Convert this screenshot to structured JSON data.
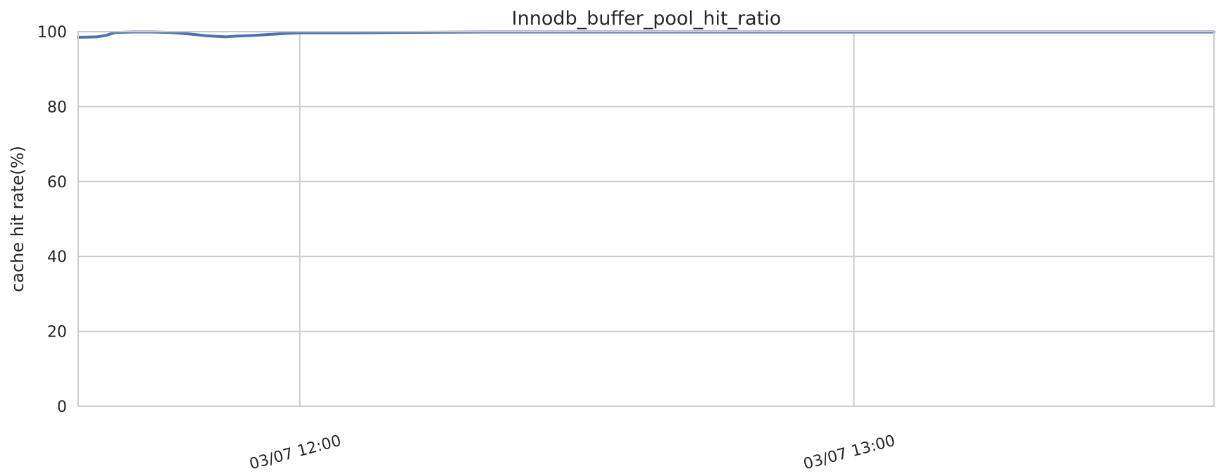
{
  "chart_data": {
    "type": "line",
    "title": "Innodb_buffer_pool_hit_ratio",
    "xlabel": "",
    "ylabel": "cache hit rate(%)",
    "ylim": [
      0,
      100
    ],
    "y_ticks": [
      0,
      20,
      40,
      60,
      80,
      100
    ],
    "y_tick_labels": [
      "0",
      "20",
      "40",
      "60",
      "80",
      "100"
    ],
    "x_range": [
      "03/07 11:36",
      "03/07 13:39"
    ],
    "x_ticks": [
      "03/07 12:00",
      "03/07 13:00"
    ],
    "x_tick_labels": [
      "03/07 12:00",
      "03/07 13:00"
    ],
    "grid": true,
    "line_color": "#4c72b0",
    "series": [
      {
        "x": [
          "03/07 11:36",
          "03/07 11:38",
          "03/07 11:39",
          "03/07 11:40",
          "03/07 11:42",
          "03/07 11:44",
          "03/07 11:46",
          "03/07 11:48",
          "03/07 11:50",
          "03/07 11:52",
          "03/07 11:53",
          "03/07 11:55",
          "03/07 11:57",
          "03/07 11:59",
          "03/07 12:00",
          "03/07 12:05",
          "03/07 12:10",
          "03/07 12:20",
          "03/07 12:40",
          "03/07 13:00",
          "03/07 13:20",
          "03/07 13:39"
        ],
        "values": [
          98.5,
          98.6,
          99.0,
          99.8,
          99.9,
          99.9,
          99.8,
          99.4,
          98.9,
          98.6,
          98.8,
          99.0,
          99.3,
          99.6,
          99.7,
          99.7,
          99.8,
          99.9,
          99.9,
          99.9,
          99.9,
          99.9
        ]
      }
    ]
  }
}
